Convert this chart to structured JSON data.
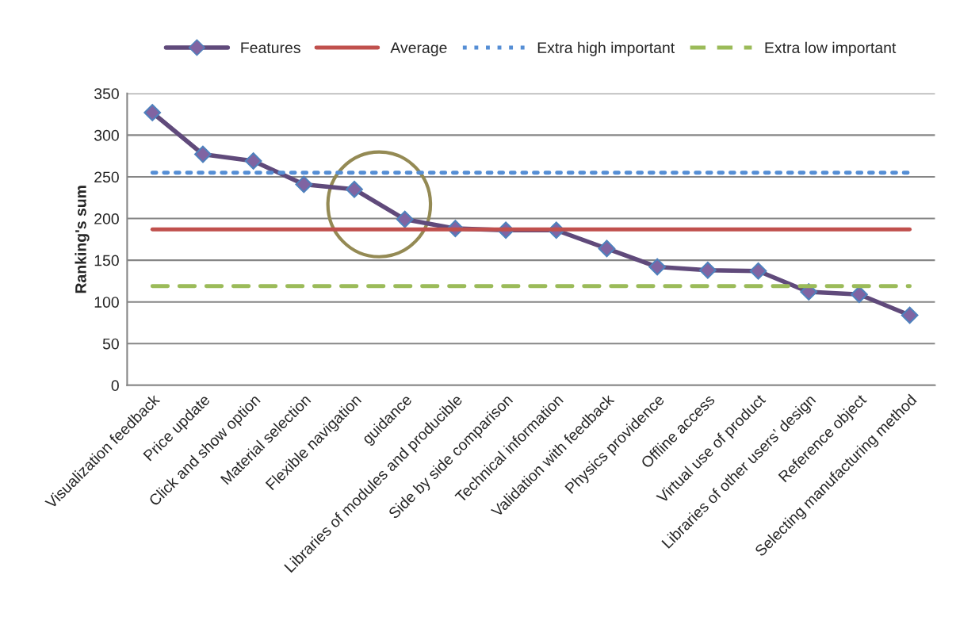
{
  "chart_data": {
    "type": "line",
    "ylabel": "Ranking's sum",
    "categories": [
      "Visualization feedback",
      "Price update",
      "Click and show option",
      "Material selection",
      "Flexible navigation",
      "guidance",
      "Libraries of modules and producible",
      "Side by side comparison",
      "Technical information",
      "Validation with feedback",
      "Physics providence",
      "Offline access",
      "Virtual use of product",
      "Libraries of other users’ design",
      "Reference object",
      "Selecting manufacturing method"
    ],
    "series": [
      {
        "name": "Features",
        "color": "#604a7b",
        "values": [
          327,
          277,
          269,
          241,
          235,
          199,
          188,
          186,
          186,
          164,
          142,
          138,
          137,
          112,
          109,
          84
        ]
      }
    ],
    "ref_lines": [
      {
        "axis": "y",
        "value": 187,
        "label": "Average",
        "color": "#c0504d",
        "line_style": "solid"
      },
      {
        "axis": "y",
        "value": 255,
        "label": "Extra high important",
        "color": "#558ed5",
        "line_style": "dotted"
      },
      {
        "axis": "y",
        "value": 119,
        "label": "Extra low important",
        "color": "#9bbb59",
        "line_style": "dashed"
      }
    ],
    "ylim": [
      0,
      350
    ],
    "yticks": [
      0,
      50,
      100,
      150,
      200,
      250,
      300,
      350
    ],
    "grid": "y",
    "legend": "top",
    "marker": "diamond",
    "line_style": "solid"
  }
}
